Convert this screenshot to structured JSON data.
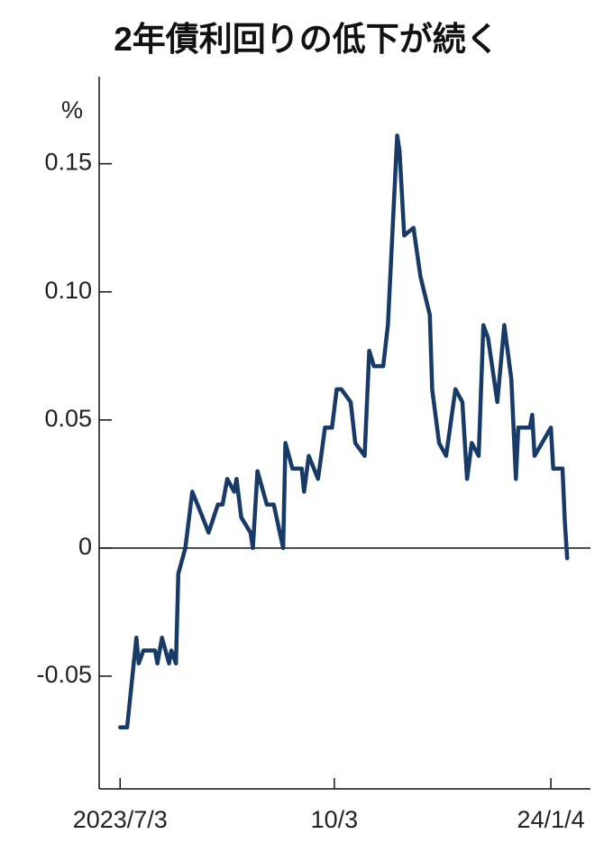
{
  "chart_data": {
    "type": "line",
    "title": "2年債利回りの低下が続く",
    "y_unit": "%",
    "x": [
      "2023-07-03",
      "2023-07-04",
      "2023-07-06",
      "2023-07-10",
      "2023-07-11",
      "2023-07-13",
      "2023-07-18",
      "2023-07-19",
      "2023-07-21",
      "2023-07-24",
      "2023-07-25",
      "2023-07-27",
      "2023-07-28",
      "2023-07-31",
      "2023-08-03",
      "2023-08-07",
      "2023-08-10",
      "2023-08-14",
      "2023-08-16",
      "2023-08-18",
      "2023-08-21",
      "2023-08-22",
      "2023-08-24",
      "2023-08-28",
      "2023-08-29",
      "2023-08-31",
      "2023-09-04",
      "2023-09-07",
      "2023-09-11",
      "2023-09-12",
      "2023-09-15",
      "2023-09-19",
      "2023-09-20",
      "2023-09-22",
      "2023-09-26",
      "2023-09-29",
      "2023-10-02",
      "2023-10-04",
      "2023-10-06",
      "2023-10-10",
      "2023-10-12",
      "2023-10-16",
      "2023-10-18",
      "2023-10-20",
      "2023-10-24",
      "2023-10-26",
      "2023-10-30",
      "2023-10-31",
      "2023-11-02",
      "2023-11-06",
      "2023-11-09",
      "2023-11-13",
      "2023-11-14",
      "2023-11-17",
      "2023-11-20",
      "2023-11-24",
      "2023-11-27",
      "2023-11-29",
      "2023-12-01",
      "2023-12-04",
      "2023-12-06",
      "2023-12-08",
      "2023-12-12",
      "2023-12-15",
      "2023-12-18",
      "2023-12-20",
      "2023-12-21",
      "2023-12-26",
      "2023-12-27",
      "2023-12-28",
      "2024-01-04",
      "2024-01-05",
      "2024-01-09",
      "2024-01-10",
      "2024-01-11"
    ],
    "series": [
      {
        "name": "2年債利回り",
        "color": "#173a66",
        "values": [
          -0.07,
          -0.07,
          -0.07,
          -0.035,
          -0.045,
          -0.04,
          -0.04,
          -0.045,
          -0.035,
          -0.045,
          -0.04,
          -0.045,
          -0.01,
          0.0,
          0.022,
          0.013,
          0.006,
          0.017,
          0.017,
          0.027,
          0.022,
          0.027,
          0.012,
          0.006,
          0.0,
          0.03,
          0.017,
          0.017,
          0.0,
          0.041,
          0.031,
          0.031,
          0.022,
          0.036,
          0.027,
          0.047,
          0.047,
          0.062,
          0.062,
          0.057,
          0.041,
          0.036,
          0.077,
          0.071,
          0.071,
          0.087,
          0.161,
          0.155,
          0.122,
          0.125,
          0.106,
          0.091,
          0.062,
          0.041,
          0.036,
          0.062,
          0.057,
          0.027,
          0.041,
          0.036,
          0.087,
          0.082,
          0.057,
          0.087,
          0.066,
          0.027,
          0.047,
          0.047,
          0.052,
          0.036,
          0.047,
          0.031,
          0.031,
          0.01,
          -0.004
        ]
      }
    ],
    "xlim": [
      "2023-06-24",
      "2024-01-21"
    ],
    "xticks": [
      {
        "value": "2023-07-03",
        "label": "2023/7/3"
      },
      {
        "value": "2023-10-03",
        "label": "10/3"
      },
      {
        "value": "2024-01-04",
        "label": "24/1/4"
      }
    ],
    "ylim": [
      -0.094,
      0.184
    ],
    "yticks": [
      -0.05,
      0,
      0.05,
      {
        "value": 0.1,
        "label": "0.10"
      },
      0.15
    ],
    "zero_line": true,
    "grid": false
  }
}
